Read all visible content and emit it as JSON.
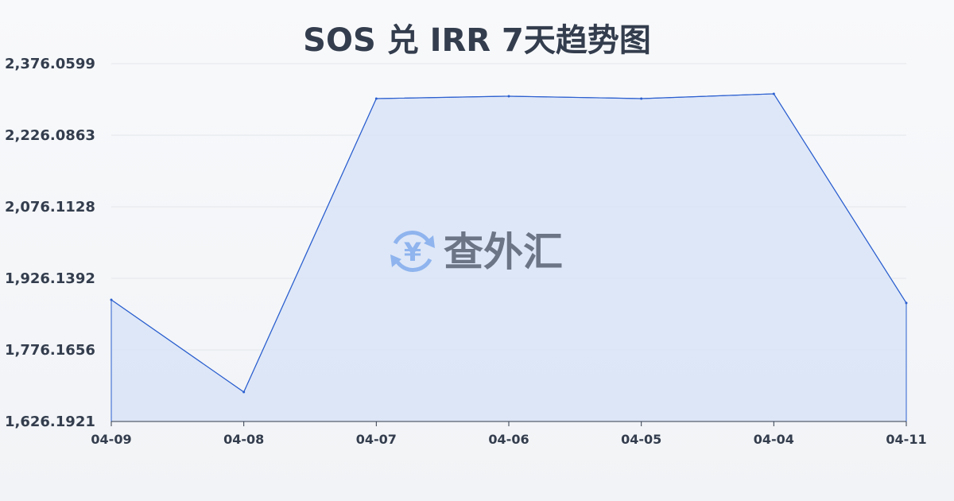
{
  "chart_data": {
    "type": "area",
    "title": "SOS 兑 IRR 7天趋势图",
    "categories": [
      "04-09",
      "04-08",
      "04-07",
      "04-06",
      "04-05",
      "04-04",
      "04-11"
    ],
    "values": [
      1881.2,
      1687.9,
      2302.8,
      2307.8,
      2302.8,
      2312.8,
      1874.5
    ],
    "yticks": [
      "1,626.1921",
      "1,776.1656",
      "1,926.1392",
      "2,076.1128",
      "2,226.0863",
      "2,376.0599"
    ],
    "ylim": [
      1626.1921,
      2376.0599
    ],
    "grid": true,
    "colors": {
      "line": "#2b5fcf",
      "fill": "#d6e2f7"
    }
  },
  "watermark": {
    "text": "查外汇",
    "icon": "yen-exchange-icon"
  }
}
